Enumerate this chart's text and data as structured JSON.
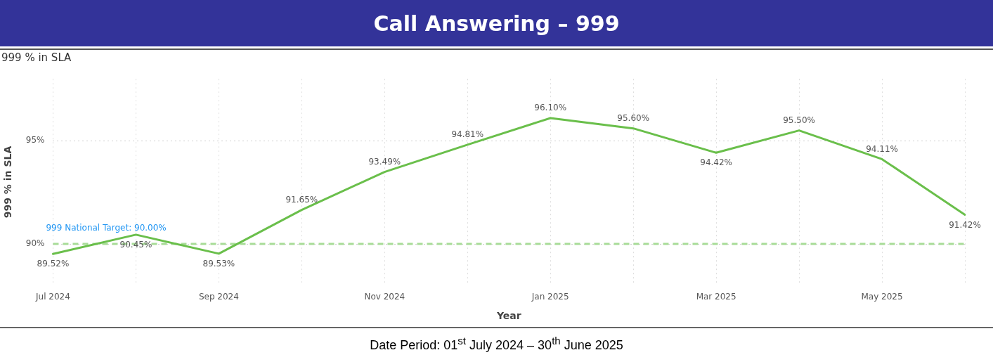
{
  "chart_data": {
    "type": "line",
    "title": "Call Answering – 999",
    "subtitle": "999 % in SLA",
    "xlabel": "Year",
    "ylabel": "999 % in SLA",
    "categories": [
      "Jul 2024",
      null,
      "Sep 2024",
      null,
      "Nov 2024",
      null,
      "Jan 2025",
      null,
      "Mar 2025",
      null,
      "May 2025",
      null
    ],
    "series": [
      {
        "color": "#6abf4b",
        "values": [
          89.52,
          90.45,
          89.53,
          91.65,
          93.49,
          94.81,
          96.1,
          95.6,
          94.42,
          95.5,
          94.11,
          91.42
        ],
        "value_labels": [
          "89.52%",
          "90.45%",
          "89.53%",
          "91.65%",
          "93.49%",
          "94.81%",
          "96.10%",
          "95.60%",
          "94.42%",
          "95.50%",
          "94.11%",
          "91.42%"
        ]
      }
    ],
    "ylim": [
      88,
      98
    ],
    "yticks": [
      {
        "value": 90,
        "label": "90%"
      },
      {
        "value": 95,
        "label": "95%"
      }
    ],
    "grid": true,
    "legend": false,
    "marker": "none",
    "line_style": "solid",
    "ref_lines": [
      {
        "axis": "y",
        "value": 90,
        "label": "999 National Target: 90.00%",
        "color": "#a8dc98",
        "line_style": "dashed"
      }
    ],
    "annotations": [
      "Date Period: 01$^{st}$ July 2024 – 30$^{th}$ June 2025"
    ]
  }
}
